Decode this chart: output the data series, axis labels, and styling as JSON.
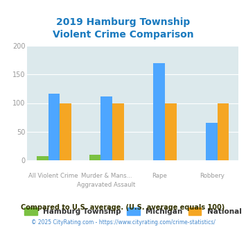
{
  "title": "2019 Hamburg Township\nViolent Crime Comparison",
  "top_labels": [
    "",
    "Murder & Mans...",
    "",
    ""
  ],
  "bot_labels": [
    "All Violent Crime",
    "Aggravated Assault",
    "Rape",
    "Robbery"
  ],
  "hamburg": [
    7,
    10,
    0,
    0
  ],
  "michigan": [
    116,
    112,
    170,
    65
  ],
  "national": [
    100,
    100,
    100,
    100
  ],
  "hamburg_color": "#7bc142",
  "michigan_color": "#4da6ff",
  "national_color": "#f5a623",
  "bg_color": "#dce9ec",
  "ylim": [
    0,
    200
  ],
  "yticks": [
    0,
    50,
    100,
    150,
    200
  ],
  "title_color": "#1a7abf",
  "legend_label_hamburg": "Hamburg Township",
  "legend_label_michigan": "Michigan",
  "legend_label_national": "National",
  "footnote1": "Compared to U.S. average. (U.S. average equals 100)",
  "footnote2": "© 2025 CityRating.com - https://www.cityrating.com/crime-statistics/",
  "footnote1_color": "#333300",
  "footnote2_color": "#4488cc"
}
